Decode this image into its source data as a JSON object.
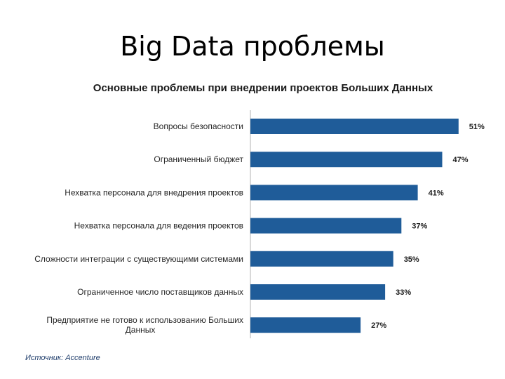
{
  "slide": {
    "title": "Big Data проблемы",
    "source": "Источник: Accenture"
  },
  "chart_data": {
    "type": "bar",
    "orientation": "horizontal",
    "title": "Основные проблемы при внедрении проектов Больших Данных",
    "categories": [
      [
        "Вопросы безопасности"
      ],
      [
        "Ограниченный бюджет"
      ],
      [
        "Нехватка персонала для внедрения проектов"
      ],
      [
        "Нехватка персонала для ведения проектов"
      ],
      [
        "Сложности интеграции с существующими системами"
      ],
      [
        "Ограниченное число поставщиков данных"
      ],
      [
        "Предприятие не готово к использованию Больших",
        "Данных"
      ]
    ],
    "values": [
      51,
      47,
      41,
      37,
      35,
      33,
      27
    ],
    "value_labels": [
      "51%",
      "47%",
      "41%",
      "37%",
      "35%",
      "33%",
      "27%"
    ],
    "xlim": [
      0,
      60
    ],
    "bar_color": "#1f5c99",
    "grid": false,
    "legend": "none"
  }
}
